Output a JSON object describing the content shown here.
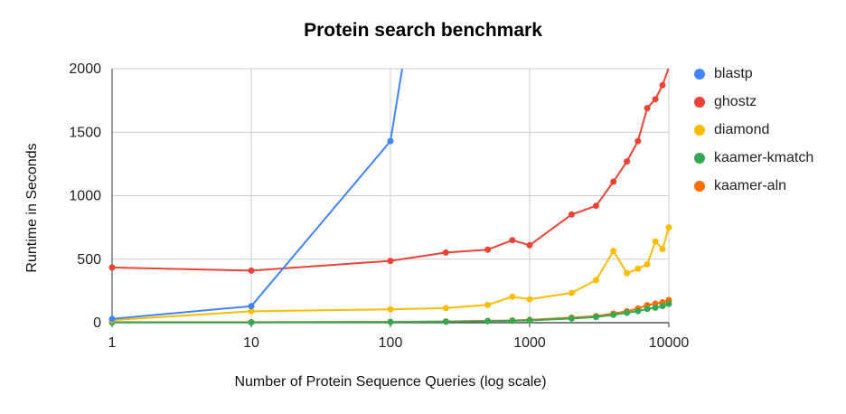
{
  "chart_data": {
    "type": "line",
    "title": "Protein search benchmark",
    "xlabel": "Number of Protein Sequence Queries (log scale)",
    "ylabel": "Runtime in Seconds",
    "x_scale": "log",
    "xlim": [
      1,
      10000
    ],
    "ylim": [
      0,
      2000
    ],
    "x_ticks": [
      1,
      10,
      100,
      1000,
      10000
    ],
    "x_tick_labels": [
      "1",
      "10",
      "100",
      "1000",
      "10000"
    ],
    "y_ticks": [
      0,
      500,
      1000,
      1500,
      2000
    ],
    "y_tick_labels": [
      "0",
      "500",
      "1000",
      "1500",
      "2000"
    ],
    "grid": true,
    "legend_position": "right",
    "series": [
      {
        "name": "blastp",
        "color": "#4285F4",
        "points": [
          [
            1,
            30
          ],
          [
            10,
            130
          ],
          [
            100,
            1430
          ],
          [
            130,
            2200
          ]
        ]
      },
      {
        "name": "ghostz",
        "color": "#EA4335",
        "points": [
          [
            1,
            435
          ],
          [
            10,
            410
          ],
          [
            100,
            487
          ],
          [
            250,
            552
          ],
          [
            500,
            575
          ],
          [
            750,
            650
          ],
          [
            1000,
            610
          ],
          [
            2000,
            852
          ],
          [
            3000,
            920
          ],
          [
            4000,
            1110
          ],
          [
            5000,
            1270
          ],
          [
            6000,
            1430
          ],
          [
            7000,
            1690
          ],
          [
            8000,
            1760
          ],
          [
            9000,
            1870
          ],
          [
            10000,
            2010
          ]
        ]
      },
      {
        "name": "diamond",
        "color": "#FBBC04",
        "points": [
          [
            1,
            20
          ],
          [
            10,
            90
          ],
          [
            100,
            105
          ],
          [
            250,
            115
          ],
          [
            500,
            140
          ],
          [
            750,
            205
          ],
          [
            1000,
            185
          ],
          [
            2000,
            235
          ],
          [
            3000,
            335
          ],
          [
            4000,
            565
          ],
          [
            5000,
            390
          ],
          [
            6000,
            425
          ],
          [
            7000,
            460
          ],
          [
            8000,
            640
          ],
          [
            9000,
            580
          ],
          [
            10000,
            750
          ]
        ]
      },
      {
        "name": "kaamer-kmatch",
        "color": "#34A853",
        "points": [
          [
            1,
            3
          ],
          [
            10,
            3
          ],
          [
            100,
            5
          ],
          [
            250,
            8
          ],
          [
            500,
            12
          ],
          [
            750,
            15
          ],
          [
            1000,
            18
          ],
          [
            2000,
            33
          ],
          [
            3000,
            45
          ],
          [
            4000,
            62
          ],
          [
            5000,
            78
          ],
          [
            6000,
            92
          ],
          [
            7000,
            108
          ],
          [
            8000,
            118
          ],
          [
            9000,
            132
          ],
          [
            10000,
            148
          ]
        ]
      },
      {
        "name": "kaamer-aln",
        "color": "#FF6D01",
        "points": [
          [
            1,
            4
          ],
          [
            10,
            4
          ],
          [
            100,
            7
          ],
          [
            250,
            10
          ],
          [
            500,
            15
          ],
          [
            750,
            18
          ],
          [
            1000,
            22
          ],
          [
            2000,
            40
          ],
          [
            3000,
            52
          ],
          [
            4000,
            72
          ],
          [
            5000,
            90
          ],
          [
            6000,
            112
          ],
          [
            7000,
            138
          ],
          [
            8000,
            150
          ],
          [
            9000,
            160
          ],
          [
            10000,
            178
          ]
        ]
      }
    ]
  }
}
